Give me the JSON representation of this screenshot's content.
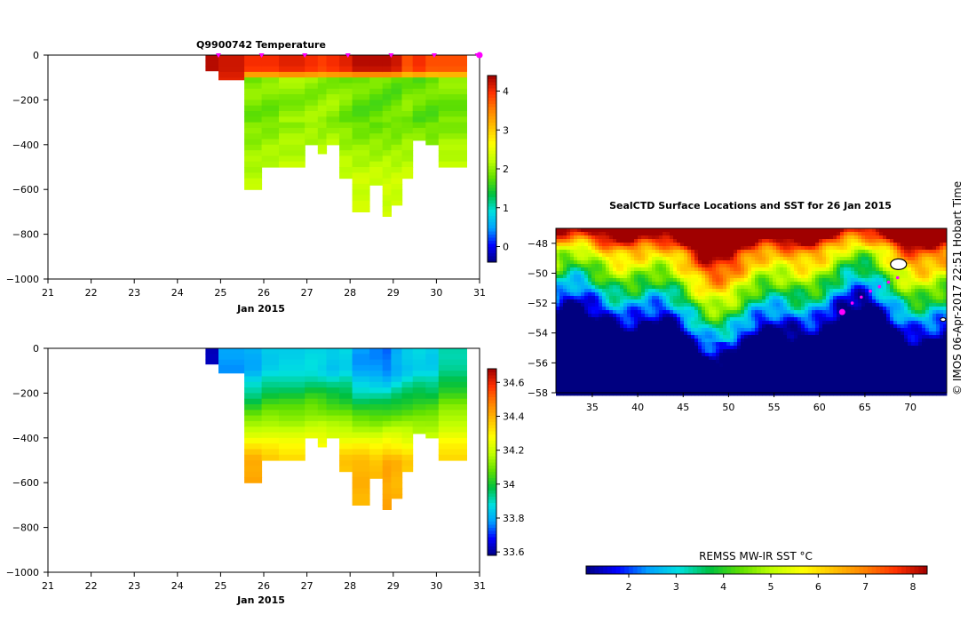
{
  "chart_data": [
    {
      "type": "heatmap",
      "title": "Q9900742  Temperature",
      "xlabel": "Jan 2015",
      "ylabel": "",
      "xlim": [
        21,
        31
      ],
      "ylim": [
        -1000,
        0
      ],
      "x_ticks": [
        "21",
        "22",
        "23",
        "24",
        "25",
        "26",
        "27",
        "28",
        "29",
        "30",
        "31"
      ],
      "y_ticks": [
        "0",
        "−200",
        "−400",
        "−600",
        "−800",
        "−1000"
      ],
      "colorbar": {
        "range": [
          -0.4,
          4.4
        ],
        "ticks": [
          "0",
          "1",
          "2",
          "3",
          "4"
        ]
      },
      "profile_markers_day": [
        24.95,
        25.95,
        26.95,
        27.95,
        28.95,
        29.95,
        30.95
      ],
      "columns": [
        {
          "x0": 24.65,
          "x1": 24.95,
          "bottom": -70,
          "surface": 4.3,
          "deep": 4.3,
          "mid": 4.3
        },
        {
          "x0": 24.95,
          "x1": 25.55,
          "bottom": -110,
          "surface": 4.2,
          "deep": 3.9,
          "mid": 4.0
        },
        {
          "x0": 25.55,
          "x1": 25.95,
          "bottom": -600,
          "surface": 4.0,
          "deep": 2.2,
          "mid": 1.9
        },
        {
          "x0": 25.95,
          "x1": 26.35,
          "bottom": -500,
          "surface": 4.0,
          "deep": 2.3,
          "mid": 1.9
        },
        {
          "x0": 26.35,
          "x1": 26.95,
          "bottom": -500,
          "surface": 4.1,
          "deep": 2.3,
          "mid": 2.0
        },
        {
          "x0": 26.95,
          "x1": 27.25,
          "bottom": -400,
          "surface": 4.0,
          "deep": 2.4,
          "mid": 2.0
        },
        {
          "x0": 27.25,
          "x1": 27.45,
          "bottom": -440,
          "surface": 3.9,
          "deep": 2.3,
          "mid": 2.0
        },
        {
          "x0": 27.45,
          "x1": 27.75,
          "bottom": -400,
          "surface": 4.0,
          "deep": 2.4,
          "mid": 2.0
        },
        {
          "x0": 27.75,
          "x1": 28.05,
          "bottom": -550,
          "surface": 4.1,
          "deep": 2.3,
          "mid": 1.9
        },
        {
          "x0": 28.05,
          "x1": 28.45,
          "bottom": -700,
          "surface": 4.3,
          "deep": 2.3,
          "mid": 1.8
        },
        {
          "x0": 28.45,
          "x1": 28.75,
          "bottom": -580,
          "surface": 4.3,
          "deep": 2.3,
          "mid": 1.8
        },
        {
          "x0": 28.75,
          "x1": 28.95,
          "bottom": -720,
          "surface": 4.3,
          "deep": 2.3,
          "mid": 1.8
        },
        {
          "x0": 28.95,
          "x1": 29.2,
          "bottom": -670,
          "surface": 4.2,
          "deep": 2.3,
          "mid": 1.8
        },
        {
          "x0": 29.2,
          "x1": 29.45,
          "bottom": -550,
          "surface": 3.8,
          "deep": 2.3,
          "mid": 1.9
        },
        {
          "x0": 29.45,
          "x1": 29.75,
          "bottom": -380,
          "surface": 4.0,
          "deep": 2.4,
          "mid": 1.8
        },
        {
          "x0": 29.75,
          "x1": 30.05,
          "bottom": -400,
          "surface": 3.8,
          "deep": 2.3,
          "mid": 1.8
        },
        {
          "x0": 30.05,
          "x1": 30.7,
          "bottom": -500,
          "surface": 3.8,
          "deep": 2.4,
          "mid": 1.9
        }
      ]
    },
    {
      "type": "heatmap",
      "title": "",
      "xlabel": "Jan 2015",
      "ylabel": "",
      "xlim": [
        21,
        31
      ],
      "ylim": [
        -1000,
        0
      ],
      "x_ticks": [
        "21",
        "22",
        "23",
        "24",
        "25",
        "26",
        "27",
        "28",
        "29",
        "30",
        "31"
      ],
      "y_ticks": [
        "0",
        "−200",
        "−400",
        "−600",
        "−800",
        "−1000"
      ],
      "colorbar": {
        "range": [
          33.58,
          34.68
        ],
        "ticks": [
          "33.6",
          "33.8",
          "34",
          "34.2",
          "34.4",
          "34.6"
        ]
      },
      "columns": [
        {
          "x0": 24.65,
          "x1": 24.95,
          "bottom": -70,
          "surface": 33.62,
          "deep": 33.62,
          "mid": 33.62
        },
        {
          "x0": 24.95,
          "x1": 25.55,
          "bottom": -110,
          "surface": 33.78,
          "deep": 33.8,
          "mid": 33.8
        },
        {
          "x0": 25.55,
          "x1": 25.95,
          "bottom": -600,
          "surface": 33.8,
          "deep": 34.42,
          "mid": 34.0
        },
        {
          "x0": 25.95,
          "x1": 26.35,
          "bottom": -500,
          "surface": 33.85,
          "deep": 34.38,
          "mid": 34.05
        },
        {
          "x0": 26.35,
          "x1": 26.95,
          "bottom": -500,
          "surface": 33.86,
          "deep": 34.36,
          "mid": 34.05
        },
        {
          "x0": 26.95,
          "x1": 27.25,
          "bottom": -400,
          "surface": 33.87,
          "deep": 34.35,
          "mid": 34.08
        },
        {
          "x0": 27.25,
          "x1": 27.45,
          "bottom": -440,
          "surface": 33.86,
          "deep": 34.36,
          "mid": 34.07
        },
        {
          "x0": 27.45,
          "x1": 27.75,
          "bottom": -400,
          "surface": 33.84,
          "deep": 34.35,
          "mid": 34.05
        },
        {
          "x0": 27.75,
          "x1": 28.05,
          "bottom": -550,
          "surface": 33.86,
          "deep": 34.38,
          "mid": 34.03
        },
        {
          "x0": 28.05,
          "x1": 28.45,
          "bottom": -700,
          "surface": 33.78,
          "deep": 34.4,
          "mid": 33.98
        },
        {
          "x0": 28.45,
          "x1": 28.75,
          "bottom": -580,
          "surface": 33.77,
          "deep": 34.38,
          "mid": 33.98
        },
        {
          "x0": 28.75,
          "x1": 28.95,
          "bottom": -720,
          "surface": 33.75,
          "deep": 34.42,
          "mid": 33.98
        },
        {
          "x0": 28.95,
          "x1": 29.2,
          "bottom": -670,
          "surface": 33.8,
          "deep": 34.4,
          "mid": 34.0
        },
        {
          "x0": 29.2,
          "x1": 29.45,
          "bottom": -550,
          "surface": 33.84,
          "deep": 34.36,
          "mid": 34.02
        },
        {
          "x0": 29.45,
          "x1": 29.75,
          "bottom": -380,
          "surface": 33.86,
          "deep": 34.3,
          "mid": 34.04
        },
        {
          "x0": 29.75,
          "x1": 30.05,
          "bottom": -400,
          "surface": 33.85,
          "deep": 34.32,
          "mid": 34.04
        },
        {
          "x0": 30.05,
          "x1": 30.7,
          "bottom": -500,
          "surface": 33.92,
          "deep": 34.36,
          "mid": 34.1
        }
      ]
    },
    {
      "type": "heatmap",
      "title": "SealCTD Surface Locations and SST for 26 Jan 2015",
      "xlabel": "",
      "ylabel": "",
      "xlim": [
        31,
        74
      ],
      "ylim": [
        -58,
        -47
      ],
      "x_ticks": [
        "35",
        "40",
        "45",
        "50",
        "55",
        "60",
        "65",
        "70"
      ],
      "y_ticks": [
        "−48",
        "−50",
        "−52",
        "−54",
        "−56",
        "−58"
      ],
      "colorbar": {
        "label": "REMSS MW-IR SST °C",
        "range": [
          1.1,
          8.3
        ],
        "ticks": [
          "2",
          "3",
          "4",
          "5",
          "6",
          "7",
          "8"
        ]
      },
      "track_points": [
        {
          "lon": 62.5,
          "lat": -52.6
        },
        {
          "lon": 63.6,
          "lat": -52.0
        },
        {
          "lon": 64.6,
          "lat": -51.6
        },
        {
          "lon": 65.6,
          "lat": -51.2
        },
        {
          "lon": 66.6,
          "lat": -50.9
        },
        {
          "lon": 67.6,
          "lat": -50.6
        },
        {
          "lon": 68.6,
          "lat": -50.3
        }
      ],
      "current_point": {
        "lon": 62.5,
        "lat": -52.6
      }
    }
  ],
  "colors": {
    "profile_marker": "#ff00ff",
    "track": "#ff00ff",
    "colormap": [
      "#000080",
      "#0000ff",
      "#00a0ff",
      "#00e0e0",
      "#00c040",
      "#60e000",
      "#c0ff00",
      "#ffff00",
      "#ffc000",
      "#ff8000",
      "#ff3000",
      "#a00000"
    ]
  },
  "credit": "© IMOS 06-Apr-2017 22:51 Hobart Time"
}
